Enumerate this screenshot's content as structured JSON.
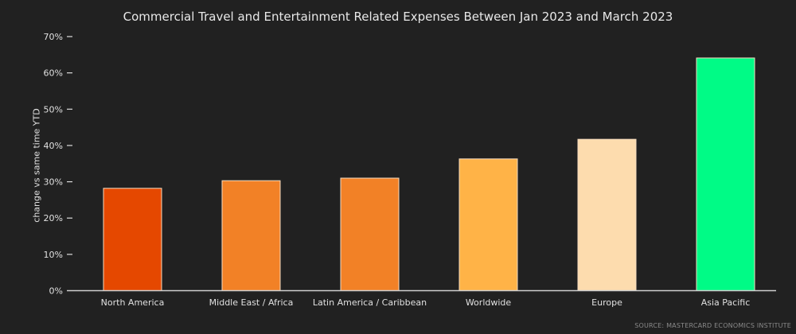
{
  "chart_data": {
    "type": "bar",
    "title": "Commercial Travel and Entertainment Related Expenses Between Jan 2023 and March 2023",
    "ylabel": "change vs same time YTD",
    "xlabel": "",
    "ylim": [
      0,
      70
    ],
    "yticks": [
      "0%",
      "10%",
      "20%",
      "30%",
      "40%",
      "50%",
      "60%",
      "70%"
    ],
    "grid": false,
    "categories": [
      "North America",
      "Middle East / Africa",
      "Latin America / Caribbean",
      "Worldwide",
      "Europe",
      "Asia Pacific"
    ],
    "values": [
      28.2,
      30.3,
      31.0,
      36.3,
      41.7,
      64.1
    ],
    "colors": [
      "#e54800",
      "#f28126",
      "#f28126",
      "#ffb347",
      "#fddcae",
      "#00fb86"
    ],
    "source": "SOURCE: MASTERCARD ECONOMICS INSTITUTE"
  }
}
